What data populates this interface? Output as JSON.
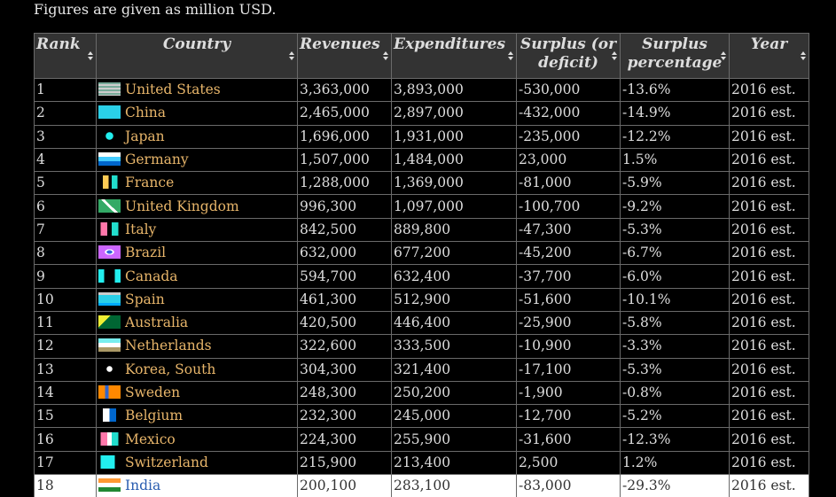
{
  "caption": "Figures are given as million USD.",
  "table": {
    "header": [
      "Rank",
      "Country",
      "Revenues",
      "Expenditures",
      "Surplus (or deficit)",
      "Surplus percentage",
      "Year"
    ],
    "rows": [
      [
        "1",
        "United States",
        "3,363,000",
        "3,893,000",
        "-530,000",
        "-13.6%",
        "2016 est."
      ],
      [
        "2",
        "China",
        "2,465,000",
        "2,897,000",
        "-432,000",
        "-14.9%",
        "2016 est."
      ],
      [
        "3",
        "Japan",
        "1,696,000",
        "1,931,000",
        "-235,000",
        "-12.2%",
        "2016 est."
      ],
      [
        "4",
        "Germany",
        "1,507,000",
        "1,484,000",
        "23,000",
        "1.5%",
        "2016 est."
      ],
      [
        "5",
        "France",
        "1,288,000",
        "1,369,000",
        "-81,000",
        "-5.9%",
        "2016 est."
      ],
      [
        "6",
        "United Kingdom",
        "996,300",
        "1,097,000",
        "-100,700",
        "-9.2%",
        "2016 est."
      ],
      [
        "7",
        "Italy",
        "842,500",
        "889,800",
        "-47,300",
        "-5.3%",
        "2016 est."
      ],
      [
        "8",
        "Brazil",
        "632,000",
        "677,200",
        "-45,200",
        "-6.7%",
        "2016 est."
      ],
      [
        "9",
        "Canada",
        "594,700",
        "632,400",
        "-37,700",
        "-6.0%",
        "2016 est."
      ],
      [
        "10",
        "Spain",
        "461,300",
        "512,900",
        "-51,600",
        "-10.1%",
        "2016 est."
      ],
      [
        "11",
        "Australia",
        "420,500",
        "446,400",
        "-25,900",
        "-5.8%",
        "2016 est."
      ],
      [
        "12",
        "Netherlands",
        "322,600",
        "333,500",
        "-10,900",
        "-3.3%",
        "2016 est."
      ],
      [
        "13",
        "Korea, South",
        "304,300",
        "321,400",
        "-17,100",
        "-5.3%",
        "2016 est."
      ],
      [
        "14",
        "Sweden",
        "248,300",
        "250,200",
        "-1,900",
        "-0.8%",
        "2016 est."
      ],
      [
        "15",
        "Belgium",
        "232,300",
        "245,000",
        "-12,700",
        "-5.2%",
        "2016 est."
      ],
      [
        "16",
        "Mexico",
        "224,300",
        "255,900",
        "-31,600",
        "-12.3%",
        "2016 est."
      ],
      [
        "17",
        "Switzerland",
        "215,900",
        "213,400",
        "2,500",
        "1.2%",
        "2016 est."
      ],
      [
        "18",
        "India",
        "200,100",
        "283,100",
        "-83,000",
        "-29.3%",
        "2016 est."
      ]
    ]
  }
}
